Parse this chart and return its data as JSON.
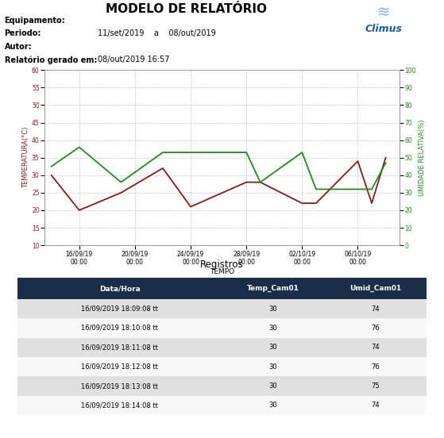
{
  "title": "MODELO DE RELATÓRIO",
  "meta_labels": [
    "Equipamento:",
    "Periodo:",
    "Autor:",
    "Relatório gerado em:"
  ],
  "meta_values": [
    "",
    "11/set/2019    a    08/out/2019",
    "",
    "08/out/2019 16:57"
  ],
  "x_labels": [
    "16/09/19\n00:00",
    "20/09/19\n00:00",
    "24/09/19\n00:00",
    "28/09/19\n00:00",
    "02/10/19\n00:00",
    "06/10/19\n00:00"
  ],
  "x_positions": [
    2,
    6,
    10,
    14,
    18,
    22
  ],
  "temp_x": [
    0,
    2,
    5,
    8,
    10,
    14,
    15,
    18,
    19,
    22,
    23,
    24
  ],
  "temp_y": [
    30,
    20,
    25,
    32,
    21,
    28,
    28,
    22,
    22,
    34,
    22,
    35
  ],
  "umid_x": [
    0,
    2,
    5,
    8,
    10,
    14,
    15,
    18,
    19,
    22,
    23,
    24
  ],
  "umid_y": [
    45,
    56,
    36,
    53,
    53,
    53,
    36,
    53,
    32,
    32,
    32,
    47
  ],
  "temp_color": "#8B1a1a",
  "umid_color": "#228B22",
  "ylim_temp": [
    10,
    60
  ],
  "ylim_umid": [
    0,
    100
  ],
  "yticks_temp": [
    10,
    15,
    20,
    25,
    30,
    35,
    40,
    45,
    50,
    55,
    60
  ],
  "yticks_umid": [
    0,
    10,
    20,
    30,
    40,
    50,
    60,
    70,
    80,
    90,
    100
  ],
  "xlabel": "TEMPO",
  "ylabel_temp": "TEMPERATURA(°C)",
  "ylabel_umid": "UMIDADE RELATIVA(%)",
  "grid_color": "#c8c8c8",
  "bg_color": "#ffffff",
  "plot_bg": "#ffffff",
  "table_title": "Registros",
  "table_headers": [
    "Data/Hora",
    "Temp_Cam01",
    "Umid_Cam01"
  ],
  "table_rows": [
    [
      "16/09/2019 18:09:08 tt",
      "30",
      "74"
    ],
    [
      "16/09/2019 18:10:08 tt",
      "30",
      "76"
    ],
    [
      "16/09/2019 18:11:08 tt",
      "30",
      "74"
    ],
    [
      "16/09/2019 18:12:08 tt",
      "30",
      "76"
    ],
    [
      "16/09/2019 18:13:08 tt",
      "30",
      "75"
    ],
    [
      "16/09/2019 18:14:08 tt",
      "30",
      "74"
    ]
  ],
  "header_color": "#1a2e4a",
  "row_even_color": "#e0e0e0",
  "row_odd_color": "#f8f8f8"
}
